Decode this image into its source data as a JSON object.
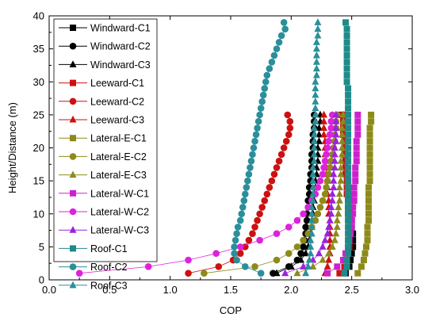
{
  "chart_data": {
    "type": "scatter",
    "xlabel": "COP",
    "ylabel": "Height/Distance (m)",
    "xlim": [
      0.0,
      3.0
    ],
    "ylim": [
      0,
      40
    ],
    "xticks": [
      0.0,
      0.5,
      1.0,
      1.5,
      2.0,
      2.5,
      3.0
    ],
    "xtick_labels": [
      "0.0",
      "0.5",
      "1.0",
      "1.5",
      "2.0",
      "2.5",
      "3.0"
    ],
    "yticks": [
      0,
      5,
      10,
      15,
      20,
      25,
      30,
      35,
      40
    ],
    "ytick_labels": [
      "0",
      "5",
      "10",
      "15",
      "20",
      "25",
      "30",
      "35",
      "40"
    ],
    "grid": false,
    "legend_position": "top-left",
    "series": [
      {
        "name": "Windward-C1",
        "color": "#000000",
        "marker": "square",
        "x": [
          2.45,
          2.48,
          2.49,
          2.5,
          2.51,
          2.51,
          2.51,
          2.5,
          2.5,
          2.49,
          2.49,
          2.48,
          2.48,
          2.47,
          2.47,
          2.46,
          2.46,
          2.45,
          2.45,
          2.44,
          2.44,
          2.43,
          2.43,
          2.43,
          2.42
        ],
        "y": [
          1,
          2,
          3,
          4,
          5,
          6,
          7,
          8,
          9,
          10,
          11,
          12,
          13,
          14,
          15,
          16,
          17,
          18,
          19,
          20,
          21,
          22,
          23,
          24,
          25
        ]
      },
      {
        "name": "Windward-C2",
        "color": "#000000",
        "marker": "circle",
        "x": [
          1.85,
          1.98,
          2.05,
          2.08,
          2.1,
          2.11,
          2.12,
          2.12,
          2.13,
          2.13,
          2.14,
          2.14,
          2.15,
          2.15,
          2.16,
          2.16,
          2.17,
          2.17,
          2.17,
          2.18,
          2.18,
          2.18,
          2.19,
          2.19,
          2.19
        ],
        "y": [
          1,
          2,
          3,
          4,
          5,
          6,
          7,
          8,
          9,
          10,
          11,
          12,
          13,
          14,
          15,
          16,
          17,
          18,
          19,
          20,
          21,
          22,
          23,
          24,
          25
        ]
      },
      {
        "name": "Windward-C3",
        "color": "#000000",
        "marker": "triangle",
        "x": [
          1.88,
          2.0,
          2.08,
          2.12,
          2.14,
          2.15,
          2.16,
          2.17,
          2.17,
          2.18,
          2.18,
          2.19,
          2.19,
          2.2,
          2.2,
          2.21,
          2.21,
          2.22,
          2.22,
          2.22,
          2.23,
          2.23,
          2.23,
          2.24,
          2.24
        ],
        "y": [
          1,
          2,
          3,
          4,
          5,
          6,
          7,
          8,
          9,
          10,
          11,
          12,
          13,
          14,
          15,
          16,
          17,
          18,
          19,
          20,
          21,
          22,
          23,
          24,
          25
        ]
      },
      {
        "name": "Leeward-C1",
        "color": "#cc1111",
        "marker": "square",
        "x": [
          2.4,
          2.44,
          2.46,
          2.47,
          2.48,
          2.48,
          2.48,
          2.48,
          2.48,
          2.47,
          2.47,
          2.47,
          2.46,
          2.46,
          2.46,
          2.45,
          2.45,
          2.45,
          2.44,
          2.44,
          2.44,
          2.43,
          2.43,
          2.43,
          2.43
        ],
        "y": [
          1,
          2,
          3,
          4,
          5,
          6,
          7,
          8,
          9,
          10,
          11,
          12,
          13,
          14,
          15,
          16,
          17,
          18,
          19,
          20,
          21,
          22,
          23,
          24,
          25
        ]
      },
      {
        "name": "Leeward-C2",
        "color": "#cc1111",
        "marker": "circle",
        "x": [
          1.15,
          1.4,
          1.52,
          1.58,
          1.62,
          1.65,
          1.68,
          1.7,
          1.72,
          1.74,
          1.76,
          1.78,
          1.8,
          1.82,
          1.84,
          1.86,
          1.88,
          1.9,
          1.92,
          1.94,
          1.96,
          1.98,
          1.99,
          1.99,
          1.97
        ],
        "y": [
          1,
          2,
          3,
          4,
          5,
          6,
          7,
          8,
          9,
          10,
          11,
          12,
          13,
          14,
          15,
          16,
          17,
          18,
          19,
          20,
          21,
          22,
          23,
          24,
          25
        ]
      },
      {
        "name": "Leeward-C3",
        "color": "#cc1111",
        "marker": "triangle",
        "x": [
          2.28,
          2.3,
          2.31,
          2.32,
          2.32,
          2.32,
          2.32,
          2.32,
          2.32,
          2.31,
          2.31,
          2.31,
          2.3,
          2.3,
          2.3,
          2.29,
          2.29,
          2.29,
          2.28,
          2.28,
          2.28,
          2.27,
          2.27,
          2.27,
          2.27
        ],
        "y": [
          1,
          2,
          3,
          4,
          5,
          6,
          7,
          8,
          9,
          10,
          11,
          12,
          13,
          14,
          15,
          16,
          17,
          18,
          19,
          20,
          21,
          22,
          23,
          24,
          25
        ]
      },
      {
        "name": "Lateral-E-C1",
        "color": "#8e8a1a",
        "marker": "square",
        "x": [
          2.55,
          2.58,
          2.6,
          2.61,
          2.62,
          2.63,
          2.63,
          2.63,
          2.64,
          2.64,
          2.64,
          2.64,
          2.64,
          2.64,
          2.65,
          2.65,
          2.65,
          2.65,
          2.65,
          2.65,
          2.65,
          2.65,
          2.65,
          2.66,
          2.66
        ],
        "y": [
          1,
          2,
          3,
          4,
          5,
          6,
          7,
          8,
          9,
          10,
          11,
          12,
          13,
          14,
          15,
          16,
          17,
          18,
          19,
          20,
          21,
          22,
          23,
          24,
          25
        ]
      },
      {
        "name": "Lateral-E-C2",
        "color": "#8e8a1a",
        "marker": "circle",
        "x": [
          1.28,
          1.7,
          1.88,
          1.98,
          2.05,
          2.1,
          2.14,
          2.17,
          2.2,
          2.22,
          2.24,
          2.26,
          2.28,
          2.29,
          2.3,
          2.31,
          2.32,
          2.33,
          2.34,
          2.35,
          2.36,
          2.36,
          2.37,
          2.37,
          2.38
        ],
        "y": [
          1,
          2,
          3,
          4,
          5,
          6,
          7,
          8,
          9,
          10,
          11,
          12,
          13,
          14,
          15,
          16,
          17,
          18,
          19,
          20,
          21,
          22,
          23,
          24,
          25
        ]
      },
      {
        "name": "Lateral-E-C3",
        "color": "#8e8a1a",
        "marker": "triangle",
        "x": [
          2.05,
          2.18,
          2.26,
          2.31,
          2.34,
          2.36,
          2.37,
          2.38,
          2.38,
          2.39,
          2.39,
          2.4,
          2.4,
          2.4,
          2.41,
          2.41,
          2.41,
          2.41,
          2.42,
          2.42,
          2.42,
          2.42,
          2.42,
          2.43,
          2.43
        ],
        "y": [
          1,
          2,
          3,
          4,
          5,
          6,
          7,
          8,
          9,
          10,
          11,
          12,
          13,
          14,
          15,
          16,
          17,
          18,
          19,
          20,
          21,
          22,
          23,
          24,
          25
        ]
      },
      {
        "name": "Lateral-W-C1",
        "color": "#cc22cc",
        "marker": "square",
        "x": [
          2.3,
          2.38,
          2.43,
          2.45,
          2.47,
          2.48,
          2.49,
          2.5,
          2.5,
          2.51,
          2.51,
          2.52,
          2.52,
          2.52,
          2.53,
          2.53,
          2.53,
          2.54,
          2.54,
          2.54,
          2.54,
          2.55,
          2.55,
          2.55,
          2.55
        ],
        "y": [
          1,
          2,
          3,
          4,
          5,
          6,
          7,
          8,
          9,
          10,
          11,
          12,
          13,
          14,
          15,
          16,
          17,
          18,
          19,
          20,
          21,
          22,
          23,
          24,
          25
        ]
      },
      {
        "name": "Lateral-W-C2",
        "color": "#dd22dd",
        "marker": "circle",
        "x": [
          0.25,
          0.82,
          1.15,
          1.38,
          1.58,
          1.74,
          1.88,
          1.98,
          2.05,
          2.1,
          2.14,
          2.17,
          2.2,
          2.22,
          2.24,
          2.26,
          2.27,
          2.28,
          2.29,
          2.3,
          2.31,
          2.32,
          2.33,
          2.33,
          2.34
        ],
        "y": [
          1,
          2,
          3,
          4,
          5,
          6,
          7,
          8,
          9,
          10,
          11,
          12,
          13,
          14,
          15,
          16,
          17,
          18,
          19,
          20,
          21,
          22,
          23,
          24,
          25
        ]
      },
      {
        "name": "Lateral-W-C3",
        "color": "#9a22dd",
        "marker": "triangle",
        "x": [
          1.95,
          2.1,
          2.18,
          2.23,
          2.26,
          2.28,
          2.3,
          2.31,
          2.32,
          2.33,
          2.33,
          2.34,
          2.34,
          2.35,
          2.35,
          2.35,
          2.36,
          2.36,
          2.36,
          2.36,
          2.37,
          2.37,
          2.37,
          2.37,
          2.37
        ],
        "y": [
          1,
          2,
          3,
          4,
          5,
          6,
          7,
          8,
          9,
          10,
          11,
          12,
          13,
          14,
          15,
          16,
          17,
          18,
          19,
          20,
          21,
          22,
          23,
          24,
          25
        ]
      },
      {
        "name": "Roof-C1",
        "color": "#1f8a8a",
        "marker": "square",
        "x": [
          2.44,
          2.46,
          2.46,
          2.47,
          2.47,
          2.47,
          2.47,
          2.47,
          2.47,
          2.47,
          2.47,
          2.47,
          2.47,
          2.47,
          2.47,
          2.47,
          2.47,
          2.47,
          2.47,
          2.47,
          2.47,
          2.47,
          2.47,
          2.47,
          2.47,
          2.47,
          2.47,
          2.47,
          2.47,
          2.46,
          2.46,
          2.46,
          2.46,
          2.46,
          2.46,
          2.46,
          2.46,
          2.46,
          2.45
        ],
        "y": [
          1,
          2,
          3,
          4,
          5,
          6,
          7,
          8,
          9,
          10,
          11,
          12,
          13,
          14,
          15,
          16,
          17,
          18,
          19,
          20,
          21,
          22,
          23,
          24,
          25,
          26,
          27,
          28,
          29,
          30,
          31,
          32,
          33,
          34,
          35,
          36,
          37,
          38,
          39
        ]
      },
      {
        "name": "Roof-C2",
        "color": "#2a8f9a",
        "marker": "circle",
        "x": [
          1.75,
          1.62,
          1.55,
          1.53,
          1.53,
          1.54,
          1.55,
          1.56,
          1.58,
          1.59,
          1.6,
          1.61,
          1.62,
          1.63,
          1.64,
          1.65,
          1.66,
          1.67,
          1.68,
          1.69,
          1.7,
          1.71,
          1.72,
          1.73,
          1.74,
          1.75,
          1.76,
          1.77,
          1.78,
          1.79,
          1.8,
          1.82,
          1.84,
          1.86,
          1.88,
          1.9,
          1.92,
          1.95,
          1.94
        ],
        "y": [
          1,
          2,
          3,
          4,
          5,
          6,
          7,
          8,
          9,
          10,
          11,
          12,
          13,
          14,
          15,
          16,
          17,
          18,
          19,
          20,
          21,
          22,
          23,
          24,
          25,
          26,
          27,
          28,
          29,
          30,
          31,
          32,
          33,
          34,
          35,
          36,
          37,
          38,
          39
        ]
      },
      {
        "name": "Roof-C3",
        "color": "#2a8f9a",
        "marker": "triangle",
        "x": [
          2.12,
          2.14,
          2.15,
          2.16,
          2.16,
          2.16,
          2.17,
          2.17,
          2.17,
          2.17,
          2.17,
          2.18,
          2.18,
          2.18,
          2.18,
          2.18,
          2.18,
          2.19,
          2.19,
          2.19,
          2.19,
          2.19,
          2.19,
          2.2,
          2.2,
          2.2,
          2.2,
          2.2,
          2.2,
          2.2,
          2.21,
          2.21,
          2.21,
          2.21,
          2.21,
          2.21,
          2.22,
          2.22,
          2.22
        ],
        "y": [
          1,
          2,
          3,
          4,
          5,
          6,
          7,
          8,
          9,
          10,
          11,
          12,
          13,
          14,
          15,
          16,
          17,
          18,
          19,
          20,
          21,
          22,
          23,
          24,
          25,
          26,
          27,
          28,
          29,
          30,
          31,
          32,
          33,
          34,
          35,
          36,
          37,
          38,
          39
        ]
      }
    ]
  }
}
